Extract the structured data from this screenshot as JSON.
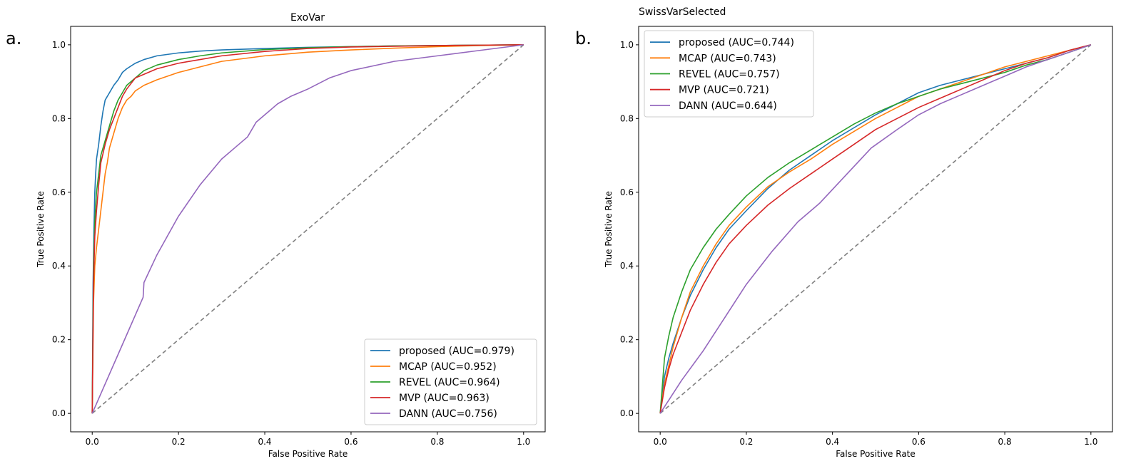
{
  "chart_data": [
    {
      "panel_label": "a.",
      "type": "line",
      "title": "ExoVar",
      "xlabel": "False Positive Rate",
      "ylabel": "True Positive Rate",
      "xlim": [
        -0.05,
        1.05
      ],
      "ylim": [
        -0.05,
        1.05
      ],
      "xticks": [
        "0.0",
        "0.2",
        "0.4",
        "0.6",
        "0.8",
        "1.0"
      ],
      "yticks": [
        "0.0",
        "0.2",
        "0.4",
        "0.6",
        "0.8",
        "1.0"
      ],
      "grid": false,
      "legend_position": "lower-right",
      "diagonal": {
        "style": "dashed",
        "color": "#808080",
        "x": [
          0,
          1
        ],
        "y": [
          0,
          1
        ]
      },
      "series": [
        {
          "name": "proposed (AUC=0.979)",
          "color": "#1f77b4",
          "x": [
            0,
            0.002,
            0.004,
            0.006,
            0.008,
            0.01,
            0.015,
            0.02,
            0.025,
            0.03,
            0.04,
            0.05,
            0.06,
            0.07,
            0.08,
            0.1,
            0.12,
            0.15,
            0.2,
            0.25,
            0.3,
            0.4,
            0.5,
            0.6,
            0.7,
            0.8,
            0.9,
            1.0
          ],
          "y": [
            0,
            0.35,
            0.5,
            0.6,
            0.65,
            0.69,
            0.73,
            0.78,
            0.82,
            0.85,
            0.87,
            0.89,
            0.905,
            0.925,
            0.935,
            0.95,
            0.96,
            0.97,
            0.978,
            0.983,
            0.986,
            0.99,
            0.993,
            0.995,
            0.997,
            0.998,
            0.999,
            1.0
          ]
        },
        {
          "name": "MCAP (AUC=0.952)",
          "color": "#ff7f0e",
          "x": [
            0,
            0.003,
            0.006,
            0.01,
            0.015,
            0.02,
            0.025,
            0.03,
            0.035,
            0.04,
            0.05,
            0.06,
            0.07,
            0.08,
            0.09,
            0.1,
            0.12,
            0.15,
            0.2,
            0.25,
            0.3,
            0.4,
            0.5,
            0.6,
            0.7,
            0.8,
            0.9,
            1.0
          ],
          "y": [
            0,
            0.3,
            0.4,
            0.45,
            0.5,
            0.55,
            0.6,
            0.65,
            0.68,
            0.72,
            0.76,
            0.8,
            0.83,
            0.85,
            0.86,
            0.875,
            0.89,
            0.905,
            0.925,
            0.94,
            0.955,
            0.97,
            0.98,
            0.986,
            0.991,
            0.995,
            0.998,
            1.0
          ]
        },
        {
          "name": "REVEL (AUC=0.964)",
          "color": "#2ca02c",
          "x": [
            0,
            0.003,
            0.006,
            0.01,
            0.015,
            0.02,
            0.03,
            0.04,
            0.05,
            0.06,
            0.07,
            0.08,
            0.1,
            0.12,
            0.15,
            0.2,
            0.25,
            0.3,
            0.4,
            0.5,
            0.6,
            0.7,
            0.8,
            0.9,
            1.0
          ],
          "y": [
            0,
            0.4,
            0.52,
            0.6,
            0.65,
            0.7,
            0.74,
            0.78,
            0.82,
            0.85,
            0.87,
            0.89,
            0.91,
            0.93,
            0.945,
            0.96,
            0.97,
            0.978,
            0.987,
            0.992,
            0.995,
            0.997,
            0.998,
            0.999,
            1.0
          ]
        },
        {
          "name": "MVP (AUC=0.963)",
          "color": "#d62728",
          "x": [
            0,
            0.003,
            0.006,
            0.01,
            0.015,
            0.02,
            0.03,
            0.04,
            0.05,
            0.06,
            0.07,
            0.08,
            0.1,
            0.12,
            0.15,
            0.2,
            0.25,
            0.3,
            0.4,
            0.5,
            0.6,
            0.7,
            0.8,
            0.9,
            1.0
          ],
          "y": [
            0,
            0.35,
            0.48,
            0.55,
            0.62,
            0.68,
            0.73,
            0.77,
            0.8,
            0.83,
            0.86,
            0.88,
            0.91,
            0.92,
            0.935,
            0.95,
            0.96,
            0.97,
            0.982,
            0.99,
            0.994,
            0.996,
            0.998,
            0.999,
            1.0
          ]
        },
        {
          "name": "DANN (AUC=0.756)",
          "color": "#9467bd",
          "x": [
            0,
            0.06,
            0.118,
            0.12,
            0.15,
            0.2,
            0.25,
            0.3,
            0.33,
            0.36,
            0.38,
            0.4,
            0.43,
            0.46,
            0.5,
            0.55,
            0.6,
            0.7,
            0.8,
            0.9,
            1.0
          ],
          "y": [
            0,
            0.16,
            0.315,
            0.355,
            0.43,
            0.535,
            0.62,
            0.69,
            0.72,
            0.75,
            0.79,
            0.81,
            0.84,
            0.86,
            0.88,
            0.91,
            0.93,
            0.955,
            0.97,
            0.985,
            1.0
          ]
        }
      ]
    },
    {
      "panel_label": "b.",
      "type": "line",
      "title": "SwissVarSelected",
      "xlabel": "False Positive Rate",
      "ylabel": "True Positive Rate",
      "xlim": [
        -0.05,
        1.05
      ],
      "ylim": [
        -0.05,
        1.05
      ],
      "xticks": [
        "0.0",
        "0.2",
        "0.4",
        "0.6",
        "0.8",
        "1.0"
      ],
      "yticks": [
        "0.0",
        "0.2",
        "0.4",
        "0.6",
        "0.8",
        "1.0"
      ],
      "grid": false,
      "legend_position": "upper-left",
      "diagonal": {
        "style": "dashed",
        "color": "#808080",
        "x": [
          0,
          1
        ],
        "y": [
          0,
          1
        ]
      },
      "series": [
        {
          "name": "proposed (AUC=0.744)",
          "color": "#1f77b4",
          "x": [
            0,
            0.01,
            0.02,
            0.03,
            0.05,
            0.07,
            0.1,
            0.13,
            0.16,
            0.2,
            0.25,
            0.3,
            0.35,
            0.4,
            0.45,
            0.5,
            0.55,
            0.6,
            0.65,
            0.7,
            0.75,
            0.8,
            0.85,
            0.9,
            0.95,
            1.0
          ],
          "y": [
            0,
            0.1,
            0.15,
            0.19,
            0.26,
            0.32,
            0.39,
            0.45,
            0.5,
            0.55,
            0.61,
            0.66,
            0.7,
            0.74,
            0.775,
            0.81,
            0.84,
            0.87,
            0.89,
            0.905,
            0.92,
            0.935,
            0.95,
            0.965,
            0.985,
            1.0
          ]
        },
        {
          "name": "MCAP (AUC=0.743)",
          "color": "#ff7f0e",
          "x": [
            0,
            0.01,
            0.02,
            0.03,
            0.05,
            0.07,
            0.1,
            0.13,
            0.16,
            0.2,
            0.25,
            0.3,
            0.35,
            0.4,
            0.45,
            0.5,
            0.55,
            0.6,
            0.65,
            0.7,
            0.75,
            0.8,
            0.85,
            0.9,
            0.95,
            1.0
          ],
          "y": [
            0,
            0.08,
            0.13,
            0.18,
            0.26,
            0.33,
            0.4,
            0.46,
            0.51,
            0.56,
            0.615,
            0.655,
            0.69,
            0.73,
            0.765,
            0.8,
            0.83,
            0.86,
            0.88,
            0.9,
            0.92,
            0.94,
            0.955,
            0.97,
            0.985,
            1.0
          ]
        },
        {
          "name": "REVEL (AUC=0.757)",
          "color": "#2ca02c",
          "x": [
            0,
            0.01,
            0.02,
            0.03,
            0.05,
            0.07,
            0.1,
            0.13,
            0.16,
            0.2,
            0.25,
            0.3,
            0.35,
            0.4,
            0.45,
            0.5,
            0.55,
            0.6,
            0.65,
            0.7,
            0.75,
            0.8,
            0.85,
            0.9,
            0.95,
            1.0
          ],
          "y": [
            0,
            0.15,
            0.21,
            0.26,
            0.33,
            0.39,
            0.45,
            0.5,
            0.54,
            0.59,
            0.64,
            0.68,
            0.715,
            0.75,
            0.785,
            0.815,
            0.84,
            0.86,
            0.88,
            0.895,
            0.91,
            0.925,
            0.945,
            0.96,
            0.98,
            1.0
          ]
        },
        {
          "name": "MVP (AUC=0.721)",
          "color": "#d62728",
          "x": [
            0,
            0.01,
            0.02,
            0.03,
            0.05,
            0.07,
            0.1,
            0.13,
            0.16,
            0.2,
            0.25,
            0.3,
            0.35,
            0.4,
            0.45,
            0.5,
            0.55,
            0.6,
            0.65,
            0.7,
            0.75,
            0.8,
            0.85,
            0.9,
            0.95,
            1.0
          ],
          "y": [
            0,
            0.07,
            0.12,
            0.16,
            0.22,
            0.28,
            0.35,
            0.41,
            0.46,
            0.51,
            0.565,
            0.61,
            0.65,
            0.69,
            0.73,
            0.77,
            0.8,
            0.83,
            0.855,
            0.88,
            0.905,
            0.93,
            0.95,
            0.965,
            0.985,
            1.0
          ]
        },
        {
          "name": "DANN (AUC=0.644)",
          "color": "#9467bd",
          "x": [
            0,
            0.05,
            0.1,
            0.15,
            0.2,
            0.26,
            0.32,
            0.37,
            0.41,
            0.45,
            0.49,
            0.55,
            0.6,
            0.65,
            0.7,
            0.75,
            0.8,
            0.85,
            0.9,
            0.95,
            1.0
          ],
          "y": [
            0,
            0.09,
            0.17,
            0.26,
            0.35,
            0.44,
            0.52,
            0.57,
            0.62,
            0.67,
            0.72,
            0.77,
            0.81,
            0.84,
            0.865,
            0.89,
            0.915,
            0.94,
            0.96,
            0.98,
            1.0
          ]
        }
      ]
    }
  ]
}
